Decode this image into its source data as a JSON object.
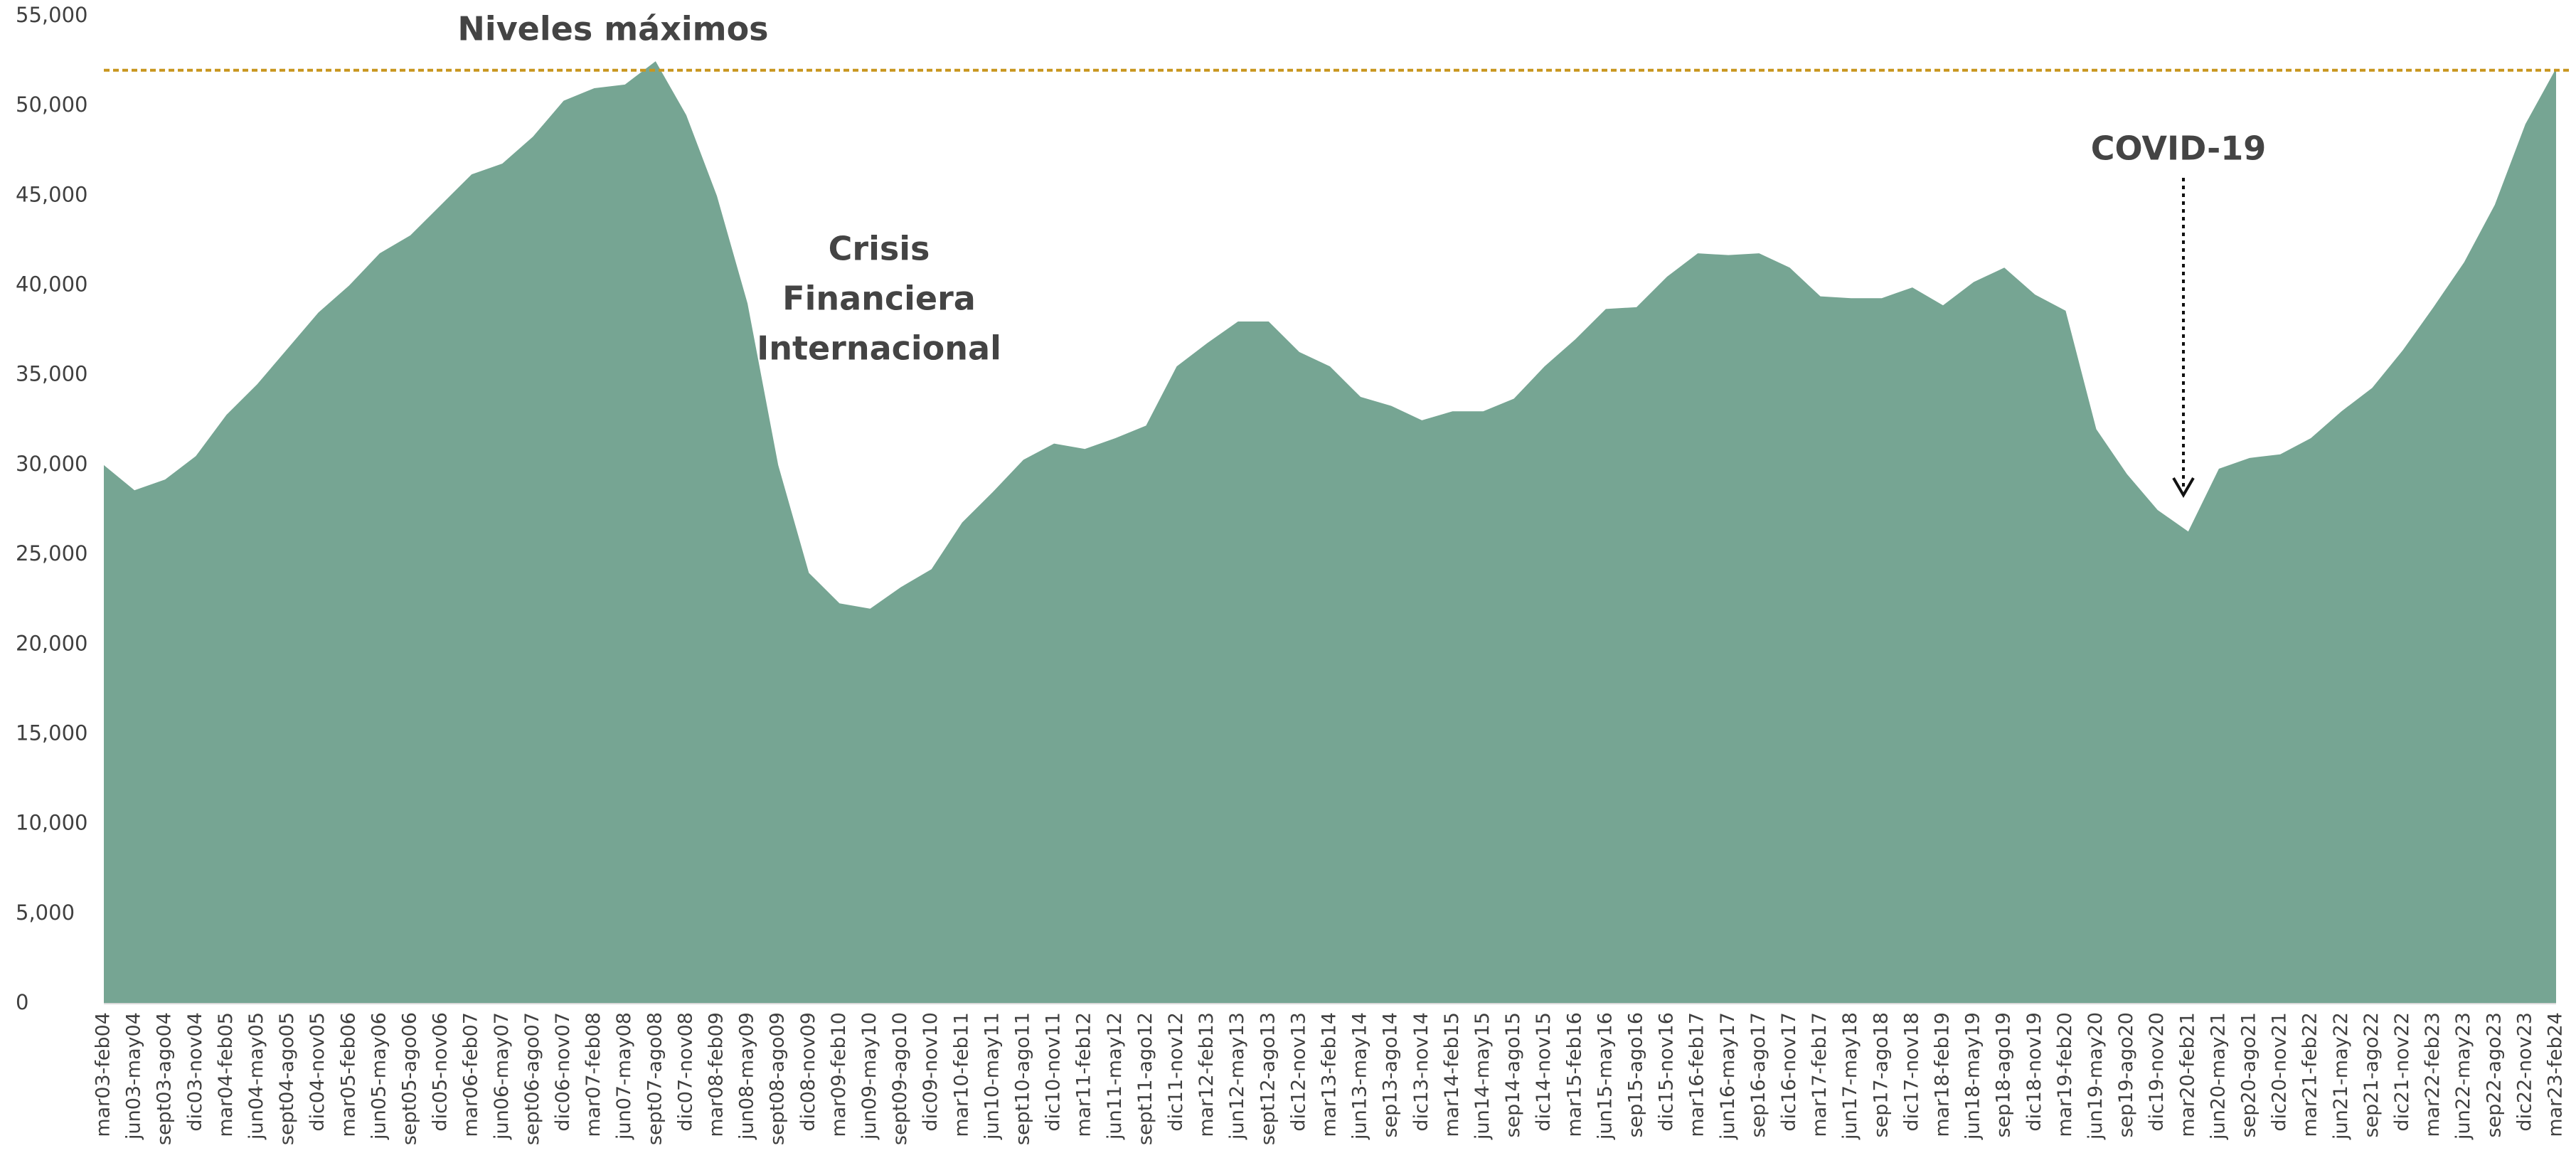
{
  "chart_data": {
    "type": "area",
    "color": "#76a593",
    "categories": [
      "mar03-feb04",
      "jun03-may04",
      "sept03-ago04",
      "dic03-nov04",
      "mar04-feb05",
      "jun04-may05",
      "sept04-ago05",
      "dic04-nov05",
      "mar05-feb06",
      "jun05-may06",
      "sept05-ago06",
      "dic05-nov06",
      "mar06-feb07",
      "jun06-may07",
      "sept06-ago07",
      "dic06-nov07",
      "mar07-feb08",
      "jun07-may08",
      "sept07-ago08",
      "dic07-nov08",
      "mar08-feb09",
      "jun08-may09",
      "sept08-ago09",
      "dic08-nov09",
      "mar09-feb10",
      "jun09-may10",
      "sept09-ago10",
      "dic09-nov10",
      "mar10-feb11",
      "jun10-may11",
      "sept10-ago11",
      "dic10-nov11",
      "mar11-feb12",
      "jun11-may12",
      "sept11-ago12",
      "dic11-nov12",
      "mar12-feb13",
      "jun12-may13",
      "sept12-ago13",
      "dic12-nov13",
      "mar13-feb14",
      "jun13-may14",
      "sep13-ago14",
      "dic13-nov14",
      "mar14-feb15",
      "jun14-may15",
      "sep14-ago15",
      "dic14-nov15",
      "mar15-feb16",
      "jun15-may16",
      "sep15-ago16",
      "dic15-nov16",
      "mar16-feb17",
      "jun16-may17",
      "sep16-ago17",
      "dic16-nov17",
      "mar17-feb17",
      "jun17-may18",
      "sep17-ago18",
      "dic17-nov18",
      "mar18-feb19",
      "jun18-may19",
      "sep18-ago19",
      "dic18-nov19",
      "mar19-feb20",
      "jun19-may20",
      "sep19-ago20",
      "dic19-nov20",
      "mar20-feb21",
      "jun20-may21",
      "sep20-ago21",
      "dic20-nov21",
      "mar21-feb22",
      "jun21-may22",
      "sep21-ago22",
      "dic21-nov22",
      "mar22-feb23",
      "jun22-may23",
      "sep22-ago23",
      "dic22-nov23",
      "mar23-feb24"
    ],
    "values": [
      30000,
      28600,
      29200,
      30500,
      32800,
      34500,
      36500,
      38500,
      40000,
      41800,
      42800,
      44500,
      46200,
      46800,
      48300,
      50300,
      51000,
      51200,
      52500,
      49500,
      45000,
      39000,
      30000,
      24000,
      22300,
      22000,
      23200,
      24200,
      26800,
      28500,
      30300,
      31200,
      30900,
      31500,
      32200,
      35500,
      36800,
      38000,
      38000,
      36300,
      35500,
      33800,
      33300,
      32500,
      33000,
      33000,
      33700,
      35500,
      37000,
      38700,
      38800,
      40500,
      41800,
      41700,
      41800,
      41000,
      39400,
      39300,
      39300,
      39900,
      38900,
      40200,
      41000,
      39500,
      38600,
      32000,
      29500,
      27500,
      26300,
      29800,
      30400,
      30600,
      31500,
      33000,
      34300,
      36400,
      38800,
      41300,
      44500,
      49000,
      52100
    ],
    "ylim": [
      0,
      55000
    ],
    "yticks": [
      0,
      {
        "value": 5000,
        "label": "5,000"
      },
      {
        "value": 10000,
        "label": "10,000"
      },
      {
        "value": 15000,
        "label": "15,000"
      },
      {
        "value": 20000,
        "label": "20,000"
      },
      {
        "value": 25000,
        "label": "25,000"
      },
      {
        "value": 30000,
        "label": "30,000"
      },
      {
        "value": 35000,
        "label": "35,000"
      },
      {
        "value": 40000,
        "label": "40,000"
      },
      {
        "value": 45000,
        "label": "45,000"
      },
      {
        "value": 50000,
        "label": "50,000"
      },
      {
        "value": 55000,
        "label": "55,000"
      }
    ],
    "max_line": {
      "value": 52000,
      "label": "Niveles máximos",
      "color": "#c8961e"
    },
    "annotations": {
      "crisis": [
        "Crisis",
        "Financiera",
        "Internacional"
      ],
      "covid": "COVID-19"
    }
  }
}
